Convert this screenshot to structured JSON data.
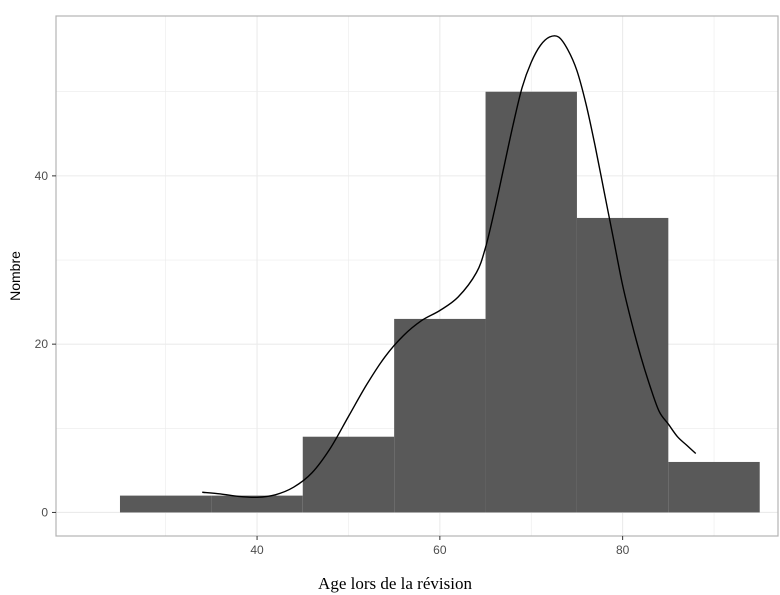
{
  "chart_data": {
    "type": "bar",
    "subtype": "histogram with density curve",
    "xlabel": "Age lors de la révision",
    "ylabel": "Nombre",
    "xlim": [
      18,
      97
    ],
    "ylim": [
      -2.8,
      59
    ],
    "x_ticks": [
      40,
      60,
      80
    ],
    "y_ticks": [
      0,
      20,
      40
    ],
    "grid": true,
    "bins": [
      {
        "x0": 25,
        "x1": 35,
        "count": 2
      },
      {
        "x0": 35,
        "x1": 45,
        "count": 2
      },
      {
        "x0": 45,
        "x1": 55,
        "count": 9
      },
      {
        "x0": 55,
        "x1": 65,
        "count": 23
      },
      {
        "x0": 65,
        "x1": 75,
        "count": 50
      },
      {
        "x0": 75,
        "x1": 85,
        "count": 35
      },
      {
        "x0": 85,
        "x1": 95,
        "count": 6
      }
    ],
    "density_curve": {
      "x": [
        34,
        36,
        38,
        40,
        42,
        44,
        46,
        48,
        50,
        52,
        54,
        56,
        58,
        60,
        62,
        64,
        65,
        66,
        67,
        68,
        69,
        70,
        71,
        72,
        73,
        74,
        75,
        76,
        77,
        78,
        79,
        80,
        81,
        82,
        83,
        84,
        85,
        86,
        87,
        88
      ],
      "y": [
        2.4,
        2.2,
        1.9,
        1.8,
        2.1,
        3.0,
        4.7,
        7.6,
        11.4,
        15.2,
        18.5,
        21.0,
        22.8,
        24.0,
        25.6,
        28.5,
        31.5,
        36.0,
        41.0,
        46.0,
        50.5,
        53.5,
        55.5,
        56.5,
        56.5,
        55.0,
        52.5,
        48.5,
        43.5,
        38.0,
        32.5,
        27.0,
        22.5,
        18.5,
        15.0,
        12.0,
        10.5,
        9.0,
        8.0,
        7.0
      ]
    },
    "colors": {
      "bar": "#595959",
      "curve": "#000000",
      "grid": "#ebebeb",
      "panel_border": "#b3b3b3"
    }
  }
}
